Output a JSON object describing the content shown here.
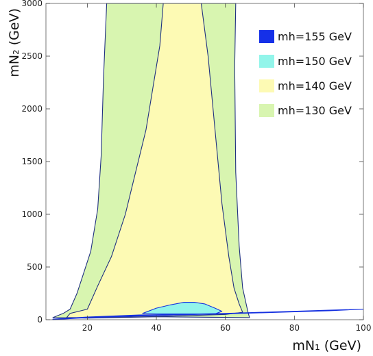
{
  "chart_data": {
    "type": "area",
    "xlabel": "mN₁ (GeV)",
    "ylabel": "mN₂ (GeV)",
    "xlim": [
      8,
      100
    ],
    "ylim": [
      0,
      3000
    ],
    "xticks": [
      20,
      40,
      60,
      80,
      100
    ],
    "yticks": [
      0,
      500,
      1000,
      1500,
      2000,
      2500,
      3000
    ],
    "grid": false,
    "legend_position": "top-right",
    "series": [
      {
        "name": "mh=130 GeV",
        "color": "#d8f5b0",
        "outline": "#1f2f80",
        "polygon": [
          [
            10,
            20
          ],
          [
            13,
            60
          ],
          [
            15,
            100
          ],
          [
            17,
            250
          ],
          [
            19,
            450
          ],
          [
            21,
            650
          ],
          [
            23,
            1050
          ],
          [
            24,
            1550
          ],
          [
            24.7,
            2300
          ],
          [
            25.6,
            3000
          ],
          [
            63,
            3000
          ],
          [
            62.7,
            2400
          ],
          [
            63,
            1400
          ],
          [
            64,
            700
          ],
          [
            65,
            300
          ],
          [
            66.5,
            80
          ],
          [
            67,
            20
          ],
          [
            40,
            28
          ],
          [
            20,
            15
          ]
        ]
      },
      {
        "name": "mh=140 GeV",
        "color": "#fdfab4",
        "outline": "#1f2f80",
        "polygon": [
          [
            14,
            20
          ],
          [
            15,
            60
          ],
          [
            20,
            100
          ],
          [
            23,
            320
          ],
          [
            27,
            600
          ],
          [
            31,
            1000
          ],
          [
            34,
            1400
          ],
          [
            37,
            1800
          ],
          [
            39,
            2200
          ],
          [
            41,
            2600
          ],
          [
            42,
            3000
          ],
          [
            53,
            3000
          ],
          [
            55,
            2500
          ],
          [
            57,
            1800
          ],
          [
            59,
            1100
          ],
          [
            61,
            600
          ],
          [
            62.5,
            300
          ],
          [
            64,
            150
          ],
          [
            65,
            70
          ],
          [
            60,
            50
          ],
          [
            40,
            30
          ],
          [
            20,
            20
          ]
        ]
      },
      {
        "name": "mh=150 GeV",
        "color": "#92f5ea",
        "outline": "#1530e0",
        "polygon": [
          [
            36,
            60
          ],
          [
            40,
            110
          ],
          [
            44,
            140
          ],
          [
            48,
            165
          ],
          [
            51,
            165
          ],
          [
            54,
            150
          ],
          [
            57,
            110
          ],
          [
            59,
            80
          ],
          [
            57,
            55
          ],
          [
            50,
            55
          ],
          [
            40,
            55
          ]
        ]
      },
      {
        "name": "mh=155 GeV",
        "color": "#1530e8",
        "outline": "#1530e0",
        "polygon": [
          [
            10,
            0
          ],
          [
            20,
            20
          ],
          [
            35,
            35
          ],
          [
            45,
            45
          ],
          [
            60,
            55
          ],
          [
            70,
            65
          ],
          [
            80,
            75
          ],
          [
            90,
            85
          ],
          [
            100,
            100
          ],
          [
            90,
            90
          ],
          [
            80,
            80
          ],
          [
            70,
            70
          ],
          [
            60,
            60
          ],
          [
            45,
            50
          ],
          [
            35,
            45
          ],
          [
            20,
            25
          ],
          [
            10,
            5
          ]
        ]
      }
    ]
  }
}
